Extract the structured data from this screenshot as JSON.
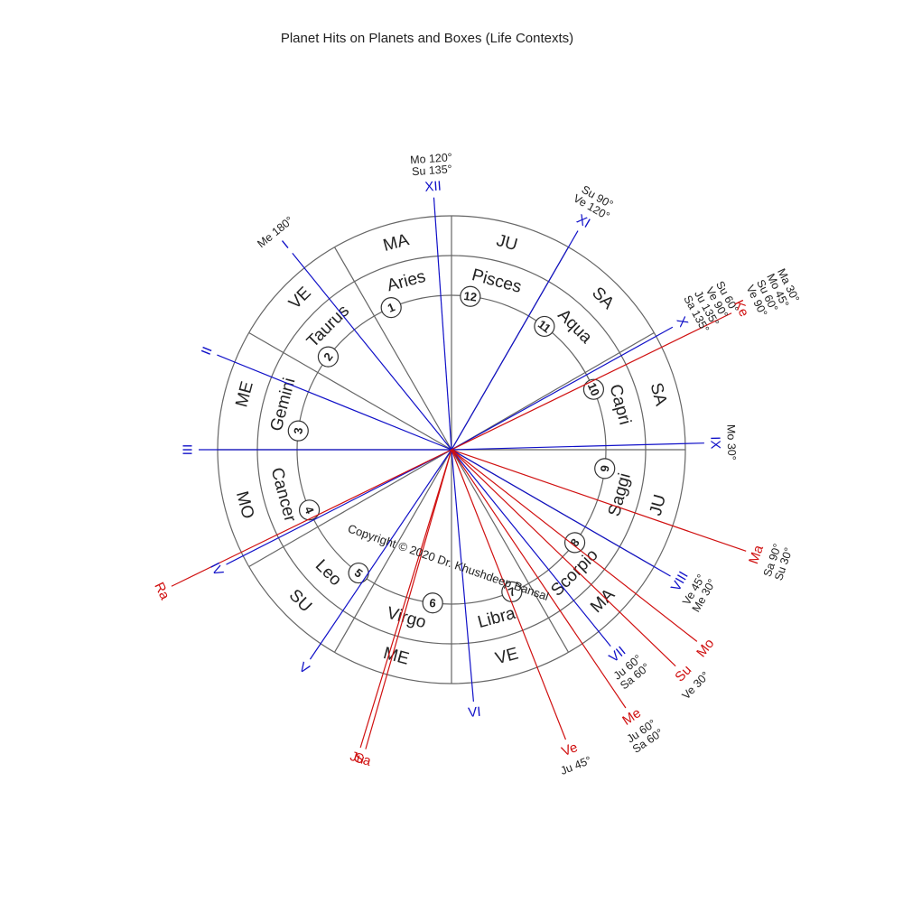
{
  "title": "Planet Hits on Planets and Boxes (Life Contexts)",
  "copyright": "Copyright © 2020 Dr. Khushdeep Bansal",
  "colors": {
    "house_ray": "#1010c8",
    "planet_ray": "#d01010",
    "ring": "#666666"
  },
  "signs": [
    {
      "num": "1",
      "name": "Aries",
      "box": "MA"
    },
    {
      "num": "2",
      "name": "Taurus",
      "box": "VE"
    },
    {
      "num": "3",
      "name": "Gemini",
      "box": "ME"
    },
    {
      "num": "4",
      "name": "Cancer",
      "box": "MO"
    },
    {
      "num": "5",
      "name": "Leo",
      "box": "SU"
    },
    {
      "num": "6",
      "name": "Virgo",
      "box": "ME"
    },
    {
      "num": "7",
      "name": "Libra",
      "box": "VE"
    },
    {
      "num": "8",
      "name": "Scorpio",
      "box": "MA"
    },
    {
      "num": "9",
      "name": "Saggi",
      "box": "JU"
    },
    {
      "num": "10",
      "name": "Capri",
      "box": "SA"
    },
    {
      "num": "11",
      "name": "Aqua",
      "box": "SA"
    },
    {
      "num": "12",
      "name": "Pisces",
      "box": "JU"
    }
  ],
  "house_rays": [
    {
      "label": "I",
      "angle": 129,
      "hits": [
        "Me 180°"
      ]
    },
    {
      "label": "II",
      "angle": 158,
      "hits": []
    },
    {
      "label": "III",
      "angle": 180,
      "hits": []
    },
    {
      "label": "IV",
      "angle": 207,
      "hits": []
    },
    {
      "label": "V",
      "angle": 236,
      "hits": []
    },
    {
      "label": "VI",
      "angle": 275,
      "hits": []
    },
    {
      "label": "VII",
      "angle": 309,
      "hits": [
        "Ju 60°",
        "Sa 60°"
      ]
    },
    {
      "label": "VIII",
      "angle": 330,
      "hits": [
        "Ve 45°",
        "Me 30°"
      ]
    },
    {
      "label": "IX",
      "angle": 1.5,
      "hits": [
        "Mo 30°"
      ]
    },
    {
      "label": "X",
      "angle": 29,
      "hits": [
        "Sa 135°",
        "Ju 135°",
        "Ve 90°",
        "Su 60°"
      ]
    },
    {
      "label": "XI",
      "angle": 60,
      "hits": [
        "Ve 120°",
        "Su 90°"
      ]
    },
    {
      "label": "XII",
      "angle": 94,
      "hits": [
        "Su 135°",
        "Mo 120°"
      ]
    }
  ],
  "planet_rays": [
    {
      "label": "Ke",
      "angle": 26,
      "hits": [
        "Ve 90°",
        "Su 60°",
        "Mo 45°",
        "Ma 30°"
      ]
    },
    {
      "label": "Ma",
      "angle": 341,
      "hits": [
        "Sa 90°",
        "Su 30°"
      ]
    },
    {
      "label": "Mo",
      "angle": 322,
      "hits": []
    },
    {
      "label": "Su",
      "angle": 316,
      "hits": [
        "Ve 30°"
      ]
    },
    {
      "label": "Me",
      "angle": 304,
      "hits": [
        "Ju 60°",
        "Sa 60°"
      ]
    },
    {
      "label": "Ve",
      "angle": 291.5,
      "hits": [
        "Ju 45°"
      ]
    },
    {
      "label": "Sa",
      "angle": 254,
      "hits": []
    },
    {
      "label": "Ju",
      "angle": 253,
      "hits": []
    },
    {
      "label": "Ra",
      "angle": 206,
      "hits": []
    }
  ]
}
